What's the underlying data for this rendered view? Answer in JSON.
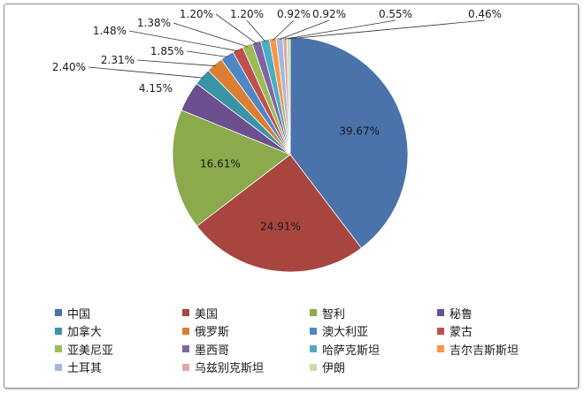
{
  "chart_data": {
    "type": "pie",
    "title": "",
    "slices": [
      {
        "name": "中国",
        "value": 39.67,
        "label": "39.67%",
        "color": "#4a72ab"
      },
      {
        "name": "美国",
        "value": 24.91,
        "label": "24.91%",
        "color": "#a8453f"
      },
      {
        "name": "智利",
        "value": 16.61,
        "label": "16.61%",
        "color": "#8aaa4c"
      },
      {
        "name": "秘鲁",
        "value": 4.15,
        "label": "4.15%",
        "color": "#6c4f8f"
      },
      {
        "name": "加拿大",
        "value": 2.4,
        "label": "2.40%",
        "color": "#3b93a6"
      },
      {
        "name": "俄罗斯",
        "value": 2.31,
        "label": "2.31%",
        "color": "#da7f31"
      },
      {
        "name": "澳大利亚",
        "value": 1.85,
        "label": "1.85%",
        "color": "#4f86c6"
      },
      {
        "name": "蒙古",
        "value": 1.48,
        "label": "1.48%",
        "color": "#c0504d"
      },
      {
        "name": "亚美尼亚",
        "value": 1.38,
        "label": "1.38%",
        "color": "#9bbb59"
      },
      {
        "name": "墨西哥",
        "value": 1.2,
        "label": "1.20%",
        "color": "#8064a2"
      },
      {
        "name": "哈萨克斯坦",
        "value": 1.2,
        "label": "1.20%",
        "color": "#4bacc6"
      },
      {
        "name": "吉尔吉斯斯坦",
        "value": 0.92,
        "label": "0.92%",
        "color": "#f79646"
      },
      {
        "name": "土耳其",
        "value": 0.92,
        "label": "0.92%",
        "color": "#a5b9dc"
      },
      {
        "name": "乌兹别克斯坦",
        "value": 0.55,
        "label": "0.55%",
        "color": "#dfa8a7"
      },
      {
        "name": "伊朗",
        "value": 0.46,
        "label": "0.46%",
        "color": "#c9dbaa"
      }
    ],
    "legend_placement": "bottom"
  }
}
